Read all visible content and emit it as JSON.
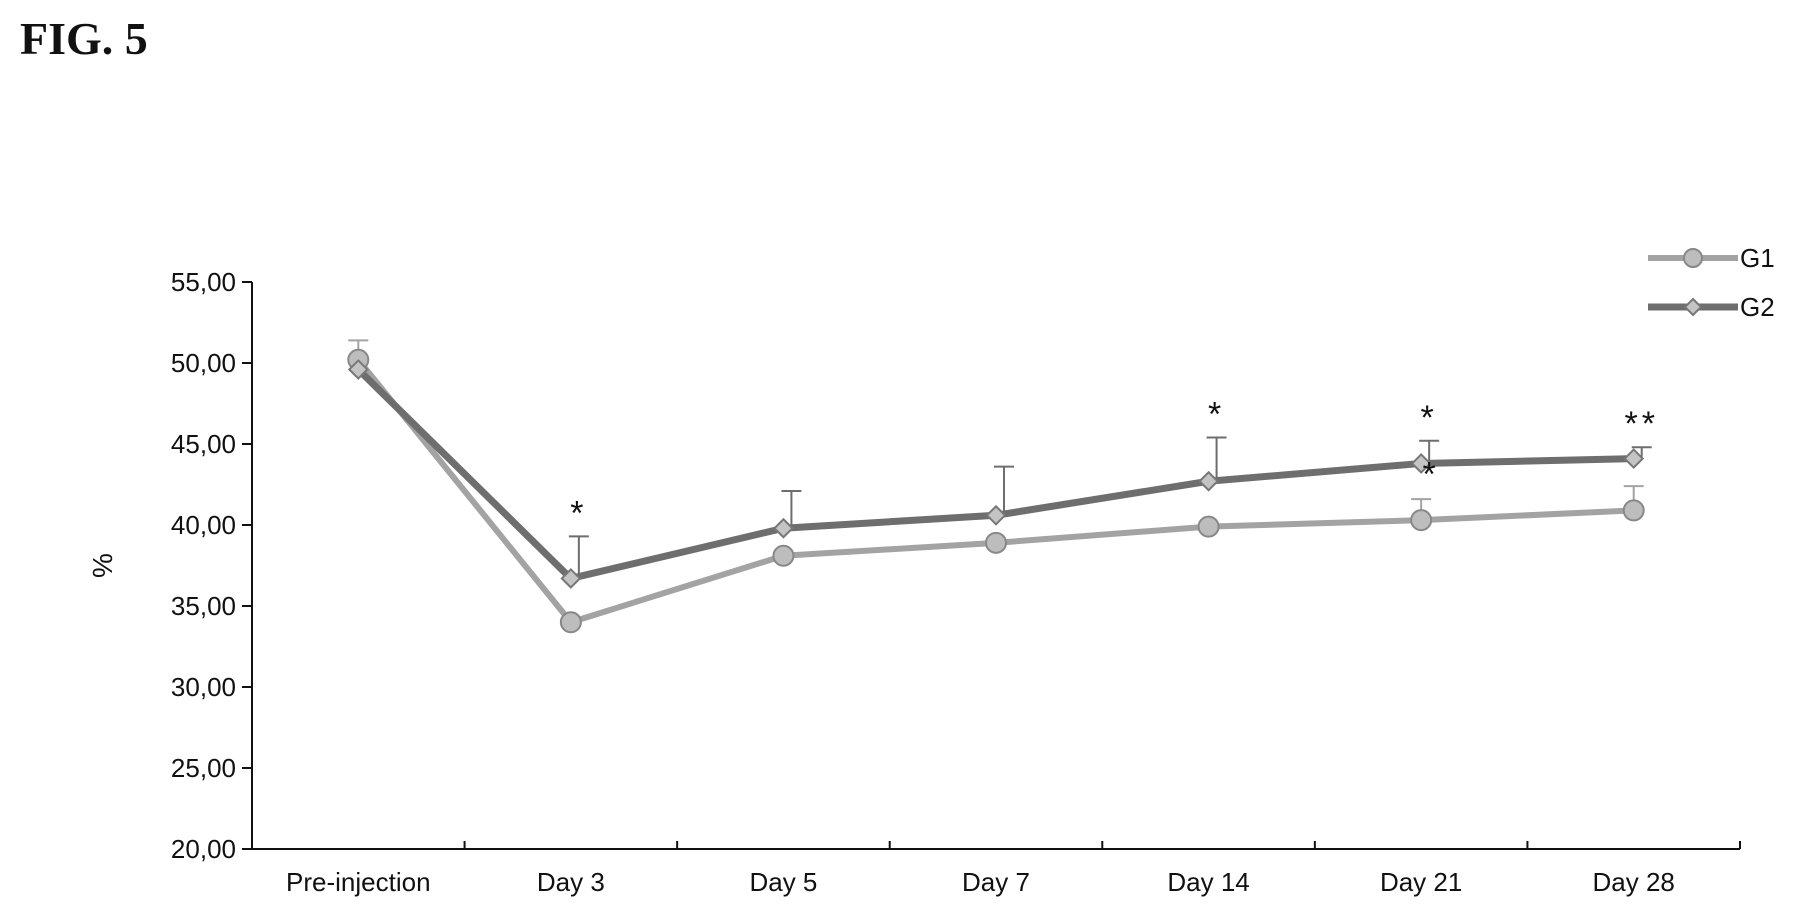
{
  "figure_label": "FIG. 5",
  "chart_data": {
    "type": "line",
    "title": "",
    "xlabel": "",
    "ylabel": "%",
    "ylim": [
      20,
      55
    ],
    "yticks": [
      20,
      25,
      30,
      35,
      40,
      45,
      50,
      55
    ],
    "ytick_labels": [
      "20,00",
      "25,00",
      "30,00",
      "35,00",
      "40,00",
      "45,00",
      "50,00",
      "55,00"
    ],
    "categories": [
      "Pre-injection",
      "Day 3",
      "Day 5",
      "Day 7",
      "Day 14",
      "Day 21",
      "Day 28"
    ],
    "legend_position": "top-right",
    "series": [
      {
        "name": "G1",
        "marker": "circle",
        "color": "#a3a3a3",
        "values": [
          50.2,
          34.0,
          38.1,
          38.9,
          39.9,
          40.3,
          40.9
        ],
        "error": [
          1.2,
          0,
          0,
          0,
          0,
          1.3,
          1.5
        ]
      },
      {
        "name": "G2",
        "marker": "diamond",
        "color": "#6e6e6e",
        "values": [
          49.6,
          36.7,
          39.8,
          40.6,
          42.7,
          43.8,
          44.1
        ],
        "error": [
          0,
          2.6,
          2.3,
          3.0,
          2.7,
          1.4,
          0.7
        ]
      }
    ],
    "annotations": [
      {
        "category": "Day 3",
        "text": "*"
      },
      {
        "category": "Day 14",
        "text": "*"
      },
      {
        "category": "Day 21",
        "text": "*"
      },
      {
        "category": "Day 28",
        "text": "**"
      }
    ]
  }
}
